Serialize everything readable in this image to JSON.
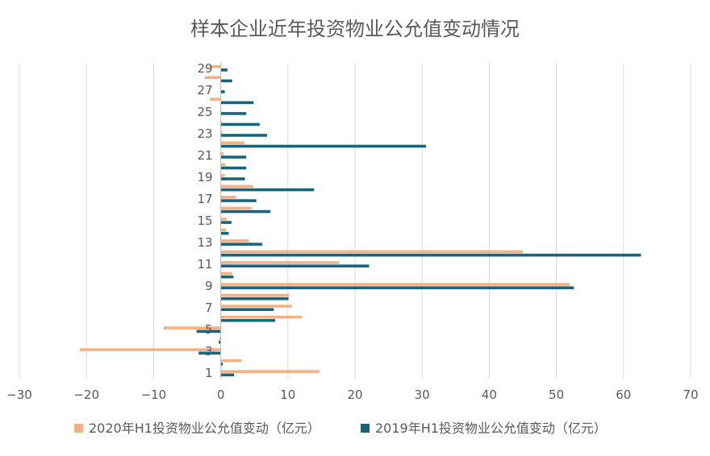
{
  "chart_data": {
    "type": "bar",
    "orientation": "horizontal",
    "title": "样本企业近年投资物业公允值变动情况",
    "xlim": [
      -30,
      70
    ],
    "x_ticks": [
      -30,
      -20,
      -10,
      0,
      10,
      20,
      30,
      40,
      50,
      60,
      70
    ],
    "categories": [
      1,
      2,
      3,
      4,
      5,
      6,
      7,
      8,
      9,
      10,
      11,
      12,
      13,
      14,
      15,
      16,
      17,
      18,
      19,
      20,
      21,
      22,
      23,
      24,
      25,
      26,
      27,
      28,
      29
    ],
    "y_tick_labels": [
      1,
      3,
      5,
      7,
      9,
      11,
      13,
      15,
      17,
      19,
      21,
      23,
      25,
      27,
      29
    ],
    "series": [
      {
        "name": "2020年H1投资物业公允值变动（亿元）",
        "color": "#f4b183",
        "values": [
          14.7,
          3.1,
          -21.0,
          -0.2,
          -8.5,
          12.1,
          10.6,
          10.2,
          52.0,
          1.7,
          17.6,
          45.0,
          4.2,
          0.8,
          0.9,
          4.6,
          2.3,
          4.8,
          0.6,
          0.7,
          0.4,
          3.5,
          0.2,
          0.1,
          0.1,
          -1.6,
          0.1,
          -2.4,
          -1.7
        ]
      },
      {
        "name": "2019年H1投资物业公允值变动（亿元）",
        "color": "#17657d",
        "values": [
          2.0,
          0.3,
          -3.3,
          -0.3,
          -3.6,
          8.1,
          7.9,
          10.1,
          52.6,
          1.9,
          22.1,
          62.6,
          6.2,
          1.2,
          1.6,
          7.4,
          5.3,
          13.9,
          3.6,
          3.8,
          3.8,
          30.6,
          6.9,
          5.8,
          3.8,
          4.9,
          0.6,
          1.7,
          1.0
        ]
      }
    ],
    "legend_position": "bottom",
    "grid": true
  }
}
